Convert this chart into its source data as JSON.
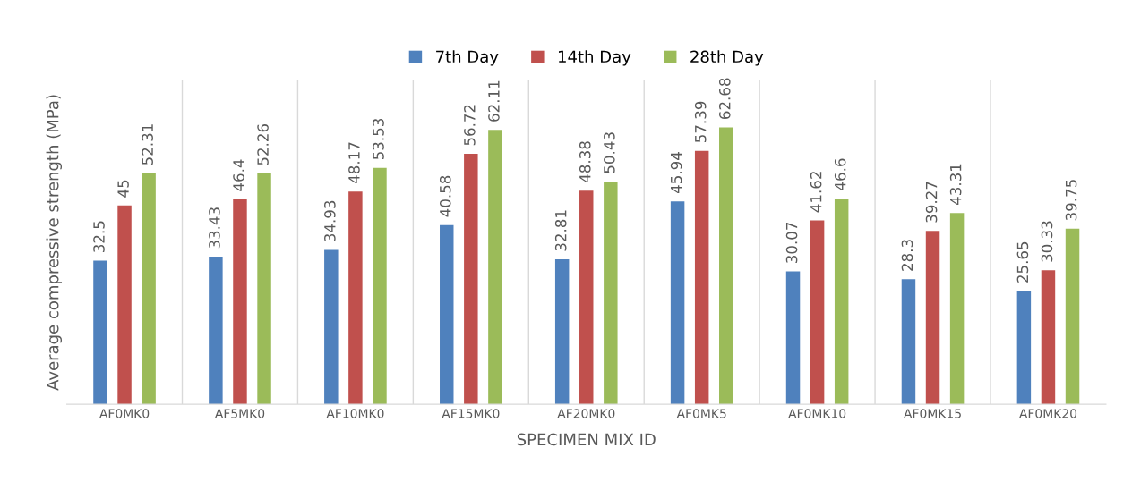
{
  "chart_data": {
    "type": "bar",
    "xlabel": "SPECIMEN MIX ID",
    "ylabel": "Average compressive strength (MPa)",
    "categories": [
      "AF0MK0",
      "AF5MK0",
      "AF10MK0",
      "AF15MK0",
      "AF20MK0",
      "AF0MK5",
      "AF0MK10",
      "AF0MK15",
      "AF0MK20"
    ],
    "series": [
      {
        "name": "7th Day",
        "color": "#4f81bd",
        "values": [
          32.5,
          33.43,
          34.93,
          40.58,
          32.81,
          45.94,
          30.07,
          28.3,
          25.65
        ]
      },
      {
        "name": "14th Day",
        "color": "#c0504d",
        "values": [
          45,
          46.4,
          48.17,
          56.72,
          48.38,
          57.39,
          41.62,
          39.27,
          30.33
        ]
      },
      {
        "name": "28th Day",
        "color": "#9bbb59",
        "values": [
          52.31,
          52.26,
          53.53,
          62.11,
          50.43,
          62.68,
          46.6,
          43.31,
          39.75
        ]
      }
    ],
    "data_labels": true,
    "grid": "x",
    "legend": "top",
    "tick_labels": "x"
  }
}
